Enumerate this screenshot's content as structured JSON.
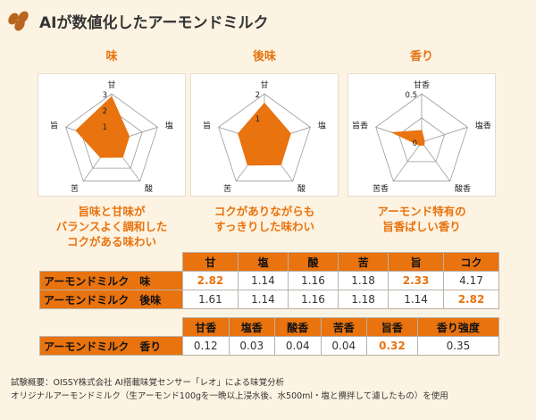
{
  "header": {
    "title": "AIが数値化したアーモンドミルク"
  },
  "colors": {
    "accent": "#e8730f",
    "background": "#fdf3e2"
  },
  "chart_data": [
    {
      "type": "radar",
      "title": "味",
      "axes": [
        "甘",
        "塩",
        "酸",
        "苦",
        "旨"
      ],
      "tick_labels": [
        "1",
        "2",
        "3"
      ],
      "rmax": 3,
      "values": [
        2.82,
        1.14,
        1.16,
        1.18,
        2.33
      ],
      "caption": [
        "旨味と甘味が",
        "バランスよく調和した",
        "コクがある味わい"
      ]
    },
    {
      "type": "radar",
      "title": "後味",
      "axes": [
        "甘",
        "塩",
        "酸",
        "苦",
        "旨"
      ],
      "tick_labels": [
        "1",
        "2"
      ],
      "rmax": 2,
      "values": [
        1.61,
        1.14,
        1.16,
        1.18,
        1.14
      ],
      "caption": [
        "コクがありながらも",
        "すっきりした味わい"
      ]
    },
    {
      "type": "radar",
      "title": "香り",
      "axes": [
        "甘香",
        "塩香",
        "酸香",
        "苦香",
        "旨香"
      ],
      "tick_labels": [
        "0",
        "0.5"
      ],
      "rmax": 0.5,
      "values": [
        0.12,
        0.03,
        0.04,
        0.04,
        0.32
      ],
      "caption": [
        "アーモンド特有の",
        "旨香ばしい香り"
      ]
    },
    {
      "type": "table",
      "columns": [
        "甘",
        "塩",
        "酸",
        "苦",
        "旨",
        "コク"
      ],
      "rows": [
        {
          "label": "アーモンドミルク　味",
          "values": [
            "2.82",
            "1.14",
            "1.16",
            "1.18",
            "2.33",
            "4.17"
          ],
          "highlight": [
            0,
            4
          ]
        },
        {
          "label": "アーモンドミルク　後味",
          "values": [
            "1.61",
            "1.14",
            "1.16",
            "1.18",
            "1.14",
            "2.82"
          ],
          "highlight": [
            5
          ]
        }
      ]
    },
    {
      "type": "table",
      "columns": [
        "甘香",
        "塩香",
        "酸香",
        "苦香",
        "旨香",
        "香り強度"
      ],
      "rows": [
        {
          "label": "アーモンドミルク　香り",
          "values": [
            "0.12",
            "0.03",
            "0.04",
            "0.04",
            "0.32",
            "0.35"
          ],
          "highlight": [
            4
          ]
        }
      ]
    }
  ],
  "footnote": {
    "line1": "試験概要：OISSY株式会社 AI搭載味覚センサー「レオ」による味覚分析",
    "line2": "オリジナルアーモンドミルク（生アーモンド100gを一晩以上浸水後、水500ml・塩と攪拌して濾したもの）を使用"
  }
}
